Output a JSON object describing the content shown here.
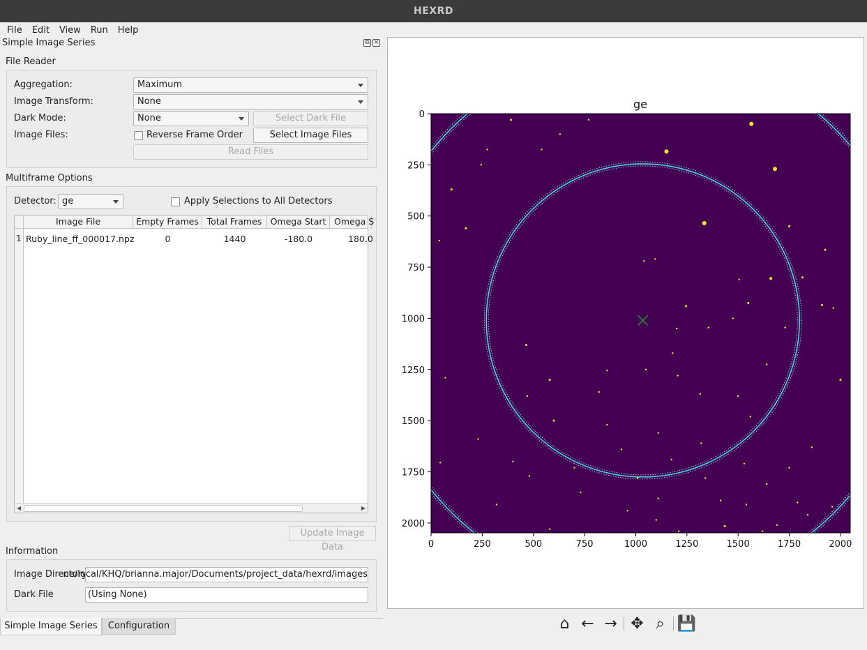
{
  "window": {
    "title": "HEXRD"
  },
  "menu": [
    {
      "label": "File",
      "mnemonic": "F",
      "rest": "ile"
    },
    {
      "label": "Edit",
      "mnemonic": "E",
      "pre": "",
      "rest": "dit"
    },
    {
      "label": "View",
      "mnemonic": "",
      "rest": "View"
    },
    {
      "label": "Run",
      "mnemonic": "R",
      "rest": "un"
    },
    {
      "label": "Help",
      "mnemonic": "H",
      "rest": "elp"
    }
  ],
  "dock": {
    "title": "Simple Image Series"
  },
  "file_reader": {
    "title": "File Reader",
    "aggregation_label": "Aggregation:",
    "aggregation_value": "Maximum",
    "transform_label": "Image Transform:",
    "transform_value": "None",
    "dark_mode_label": "Dark Mode:",
    "dark_mode_value": "None",
    "select_dark_file": "Select Dark File",
    "image_files_label": "Image Files:",
    "reverse_frame_order": "Reverse Frame Order",
    "select_image_files": "Select Image Files",
    "read_files": "Read Files"
  },
  "multiframe": {
    "title": "Multiframe Options",
    "detector_label": "Detector:",
    "detector_value": "ge",
    "apply_all": "Apply Selections to All Detectors",
    "columns": [
      "Image File",
      "Empty Frames",
      "Total Frames",
      "Omega Start",
      "Omega S"
    ],
    "rows": [
      {
        "num": "1",
        "file": "Ruby_line_ff_000017.npz",
        "empty": "0",
        "total": "1440",
        "omega_start": "-180.0",
        "omega_stop": "180.0"
      }
    ],
    "update_button": "Update Image Data"
  },
  "information": {
    "title": "Information",
    "image_dir_label": "Image Directory",
    "image_dir_value": "ne/local/KHQ/brianna.major/Documents/project_data/hexrd/images",
    "dark_file_label": "Dark File",
    "dark_file_value": "(Using None)"
  },
  "tabs": [
    {
      "label": "Simple Image Series",
      "active": true
    },
    {
      "label": "Configuration",
      "active": false
    }
  ],
  "chart_data": {
    "type": "heatmap",
    "title": "ge",
    "xlim": [
      0,
      2048
    ],
    "ylim": [
      2048,
      0
    ],
    "xticks": [
      0,
      250,
      500,
      750,
      1000,
      1250,
      1500,
      1750,
      2000
    ],
    "yticks": [
      0,
      250,
      500,
      750,
      1000,
      1250,
      1500,
      1750,
      2000
    ],
    "background_color": "#440154",
    "spot_color": "#fde725",
    "ring_color": "#3fd8e8",
    "beam_center": [
      1035,
      1010
    ],
    "rings": [
      {
        "center": [
          1035,
          1010
        ],
        "radius": 765
      },
      {
        "center": [
          1035,
          1010
        ],
        "radius": 1325
      }
    ],
    "spots": [
      [
        1565,
        50,
        3
      ],
      [
        1150,
        185,
        3
      ],
      [
        1680,
        270,
        3
      ],
      [
        1335,
        535,
        3
      ],
      [
        770,
        30,
        1.2
      ],
      [
        390,
        30,
        1.5
      ],
      [
        630,
        100,
        1.2
      ],
      [
        275,
        175,
        1.2
      ],
      [
        540,
        175,
        1.2
      ],
      [
        245,
        250,
        1.2
      ],
      [
        100,
        370,
        1.5
      ],
      [
        170,
        560,
        1.5
      ],
      [
        40,
        620,
        1.2
      ],
      [
        1750,
        550,
        1.5
      ],
      [
        1925,
        665,
        1.5
      ],
      [
        1040,
        720,
        1.2
      ],
      [
        1095,
        710,
        1.2
      ],
      [
        1815,
        800,
        1.5
      ],
      [
        1660,
        805,
        2
      ],
      [
        1505,
        810,
        1.2
      ],
      [
        1245,
        940,
        1.5
      ],
      [
        1910,
        935,
        1.5
      ],
      [
        1550,
        925,
        1.5
      ],
      [
        1965,
        950,
        1.2
      ],
      [
        1475,
        1000,
        1.2
      ],
      [
        1355,
        1045,
        1.2
      ],
      [
        1730,
        1045,
        1.2
      ],
      [
        465,
        1130,
        1.5
      ],
      [
        1180,
        1170,
        1.2
      ],
      [
        1050,
        1250,
        1.2
      ],
      [
        860,
        1255,
        1.2
      ],
      [
        580,
        1300,
        1.5
      ],
      [
        70,
        1290,
        1.2
      ],
      [
        1205,
        1280,
        1.2
      ],
      [
        1640,
        1225,
        1.2
      ],
      [
        2000,
        1300,
        1.5
      ],
      [
        470,
        1380,
        1.2
      ],
      [
        1315,
        1370,
        1.2
      ],
      [
        1500,
        1380,
        1.2
      ],
      [
        820,
        1360,
        1.2
      ],
      [
        600,
        1500,
        1.5
      ],
      [
        860,
        1520,
        1.2
      ],
      [
        1560,
        1480,
        1.2
      ],
      [
        1110,
        1560,
        1.2
      ],
      [
        230,
        1590,
        1.2
      ],
      [
        930,
        1640,
        1.2
      ],
      [
        1320,
        1610,
        1.2
      ],
      [
        1860,
        1630,
        1.2
      ],
      [
        1175,
        1690,
        1.2
      ],
      [
        1530,
        1710,
        1.2
      ],
      [
        45,
        1705,
        1.2
      ],
      [
        400,
        1700,
        1.2
      ],
      [
        1750,
        1730,
        1.2
      ],
      [
        700,
        1730,
        1.2
      ],
      [
        480,
        1770,
        1.2
      ],
      [
        1340,
        1780,
        1.2
      ],
      [
        1640,
        1810,
        1.2
      ],
      [
        730,
        1850,
        1.2
      ],
      [
        1010,
        1780,
        1.2
      ],
      [
        1110,
        1880,
        1.2
      ],
      [
        1415,
        1890,
        1.2
      ],
      [
        1540,
        1910,
        1.2
      ],
      [
        1790,
        1900,
        1.2
      ],
      [
        320,
        1910,
        1.2
      ],
      [
        1960,
        1920,
        1.2
      ],
      [
        960,
        1940,
        1.2
      ],
      [
        1840,
        1960,
        1.2
      ],
      [
        1100,
        1985,
        1.2
      ],
      [
        1690,
        2010,
        1.2
      ],
      [
        580,
        2030,
        1.2
      ],
      [
        1210,
        2040,
        1.2
      ],
      [
        840,
        2050,
        1.2
      ],
      [
        1620,
        2040,
        1.2
      ],
      [
        1435,
        2015,
        1.5
      ],
      [
        1200,
        1050,
        1.2
      ]
    ]
  },
  "toolbar": {
    "home": "⌂",
    "back": "←",
    "forward": "→",
    "pan": "✥",
    "zoom": "⌕",
    "save": "💾"
  }
}
